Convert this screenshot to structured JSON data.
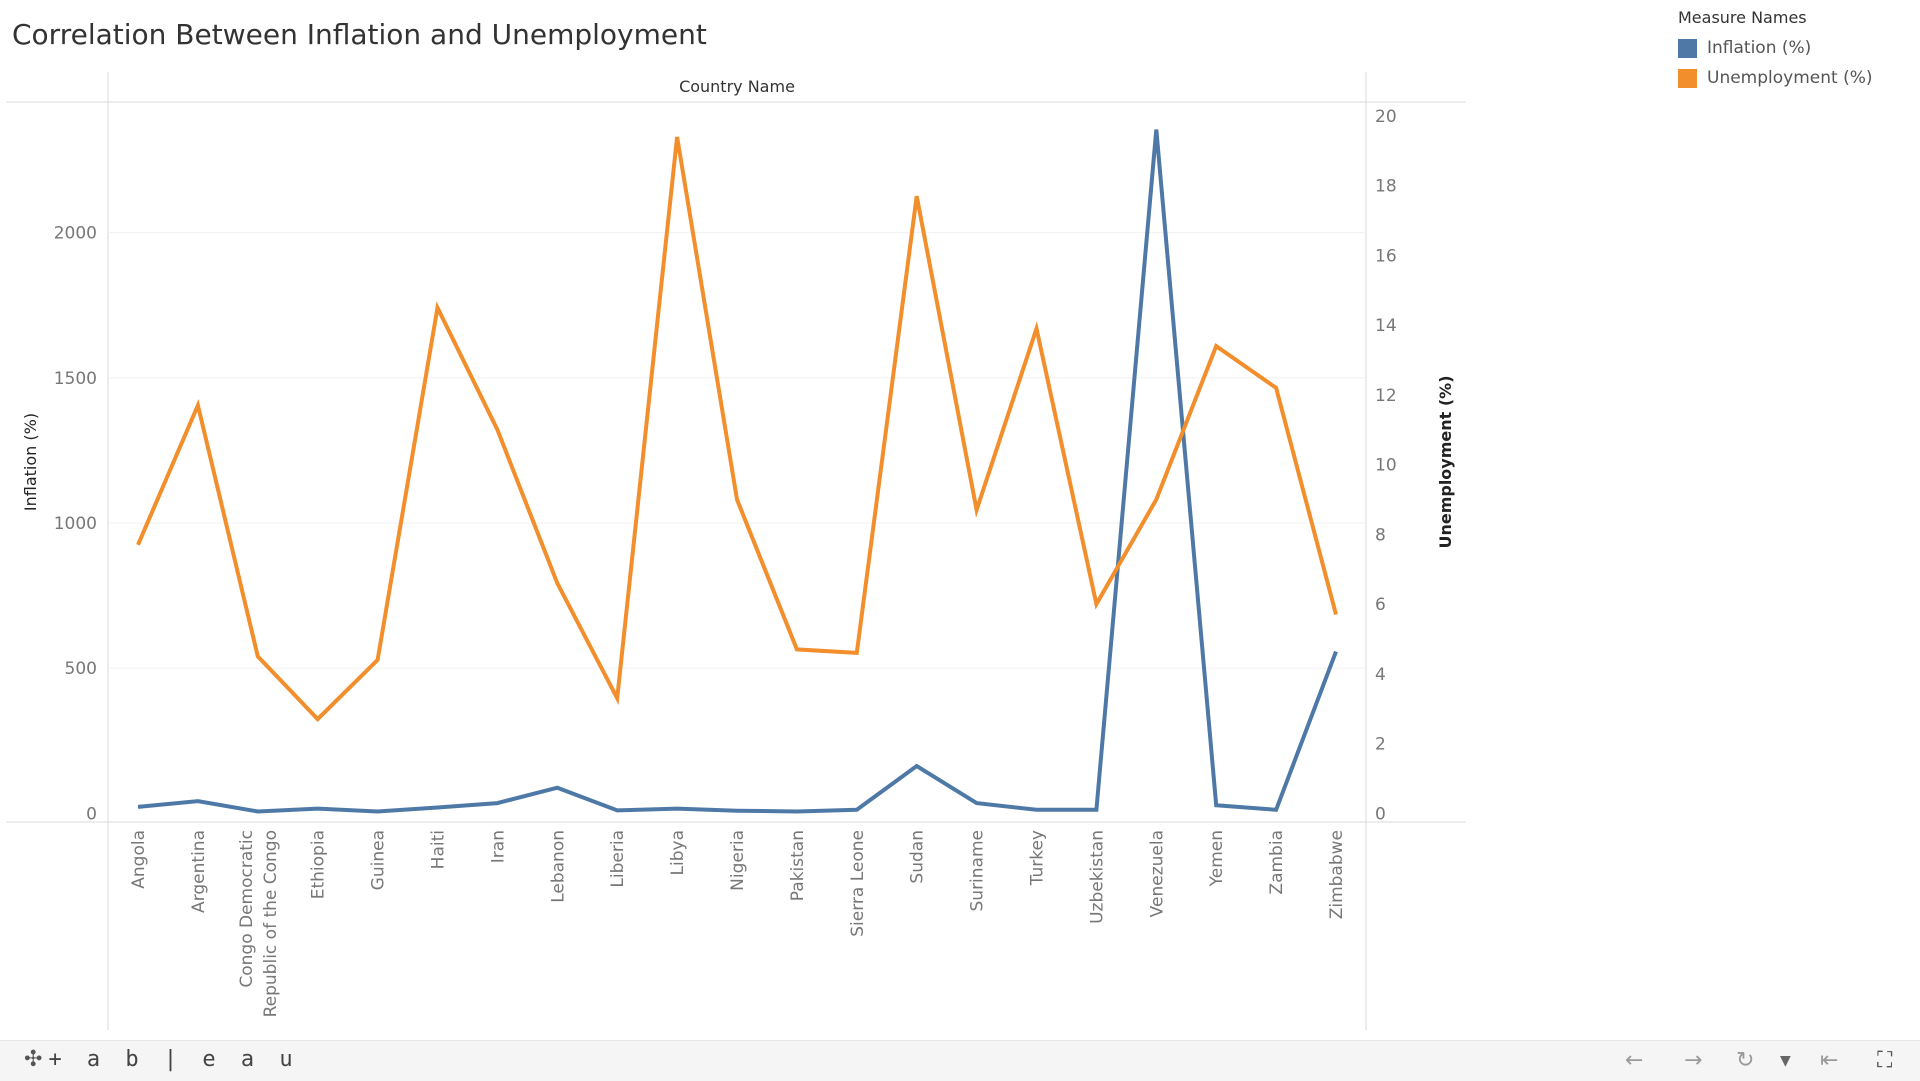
{
  "title": "Correlation Between Inflation and Unemployment",
  "legend": {
    "title": "Measure Names",
    "items": [
      {
        "label": "Inflation (%)",
        "color": "#4e79a7"
      },
      {
        "label": "Unemployment (%)",
        "color": "#f28e2b"
      }
    ]
  },
  "toolbar": {
    "logo_text": "+ a b | e a u",
    "icons": [
      "tableau-logo-icon",
      "undo-icon",
      "redo-icon",
      "revert-icon",
      "dropdown-icon",
      "go-to-start-icon",
      "fullscreen-icon"
    ]
  },
  "chart_data": {
    "type": "line",
    "title": "Correlation Between Inflation and Unemployment",
    "xlabel": "Country Name",
    "ylabel_left": "Inflation (%)",
    "ylabel_right": "Unemployment (%)",
    "categories": [
      "Angola",
      "Argentina",
      "Congo Democratic Republic of the Congo",
      "Ethiopia",
      "Guinea",
      "Haiti",
      "Iran",
      "Lebanon",
      "Liberia",
      "Libya",
      "Nigeria",
      "Pakistan",
      "Sierra Leone",
      "Sudan",
      "Suriname",
      "Turkey",
      "Uzbekistan",
      "Venezuela",
      "Yemen",
      "Zambia",
      "Zimbabwe"
    ],
    "category_lines": [
      [
        "Angola"
      ],
      [
        "Argentina"
      ],
      [
        "Congo Democratic",
        "Republic of the Congo"
      ],
      [
        "Ethiopia"
      ],
      [
        "Guinea"
      ],
      [
        "Haiti"
      ],
      [
        "Iran"
      ],
      [
        "Lebanon"
      ],
      [
        "Liberia"
      ],
      [
        "Libya"
      ],
      [
        "Nigeria"
      ],
      [
        "Pakistan"
      ],
      [
        "Sierra Leone"
      ],
      [
        "Sudan"
      ],
      [
        "Suriname"
      ],
      [
        "Turkey"
      ],
      [
        "Uzbekistan"
      ],
      [
        "Venezuela"
      ],
      [
        "Yemen"
      ],
      [
        "Zambia"
      ],
      [
        "Zimbabwe"
      ]
    ],
    "series": [
      {
        "name": "Inflation (%)",
        "axis": "left",
        "color": "#4e79a7",
        "values": [
          22,
          42,
          6,
          16,
          6,
          20,
          35,
          88,
          10,
          16,
          9,
          6,
          12,
          163,
          35,
          12,
          12,
          2355,
          28,
          12,
          557
        ]
      },
      {
        "name": "Unemployment (%)",
        "axis": "right",
        "color": "#f28e2b",
        "values": [
          7.7,
          11.7,
          4.5,
          2.7,
          4.4,
          14.5,
          11.0,
          6.6,
          3.3,
          19.4,
          9.0,
          4.7,
          4.6,
          17.7,
          8.7,
          13.9,
          6.0,
          9.0,
          13.4,
          12.2,
          5.7
        ]
      }
    ],
    "left_axis": {
      "ylim": [
        -30,
        2450
      ],
      "ticks": [
        0,
        500,
        1000,
        1500,
        2000
      ]
    },
    "right_axis": {
      "ylim": [
        -0.25,
        20.4
      ],
      "ticks": [
        0,
        2,
        4,
        6,
        8,
        10,
        12,
        14,
        16,
        18,
        20
      ]
    },
    "grid": true,
    "legend_position": "top-right"
  }
}
